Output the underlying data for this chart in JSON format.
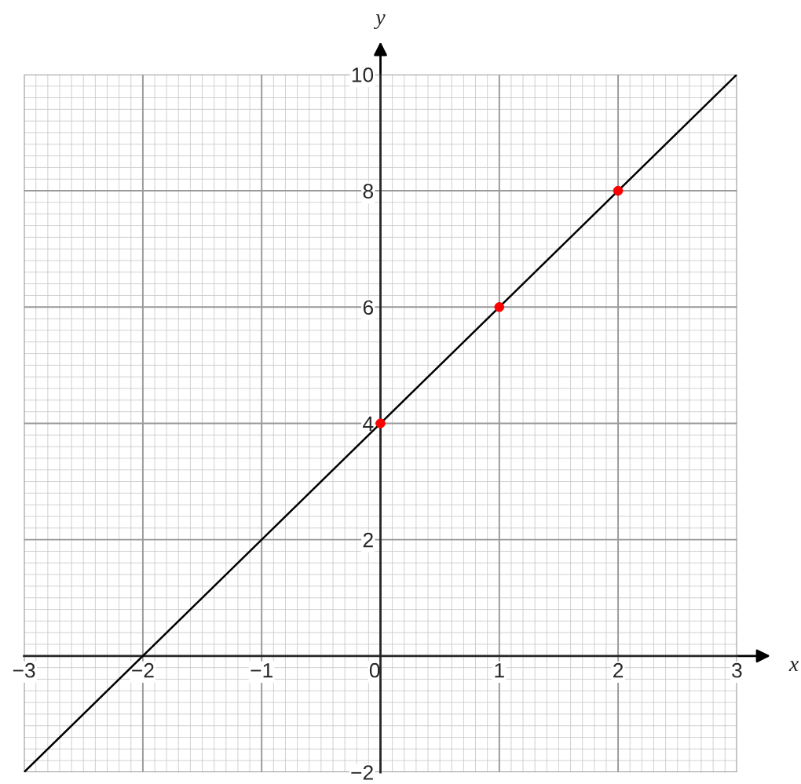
{
  "chart_data": {
    "type": "line",
    "xlabel": "x",
    "ylabel": "y",
    "series": [
      {
        "color": "#000000",
        "x": [
          -3,
          3
        ],
        "values": [
          -2,
          10
        ]
      },
      {
        "type": "scatter",
        "color": "#ff0000",
        "x": [
          0,
          1,
          2
        ],
        "values": [
          4,
          6,
          8
        ],
        "marker": "circle"
      }
    ],
    "xlim": [
      -3,
      3
    ],
    "ylim": [
      -2,
      10
    ],
    "xticks": [
      {
        "value": -3,
        "label": "−3"
      },
      {
        "value": -2,
        "label": "−2"
      },
      {
        "value": -1,
        "label": "−1"
      },
      0,
      1,
      2,
      3
    ],
    "yticks": [
      {
        "value": -2,
        "label": "−2"
      },
      2,
      4,
      6,
      8,
      10
    ],
    "grid": true
  }
}
